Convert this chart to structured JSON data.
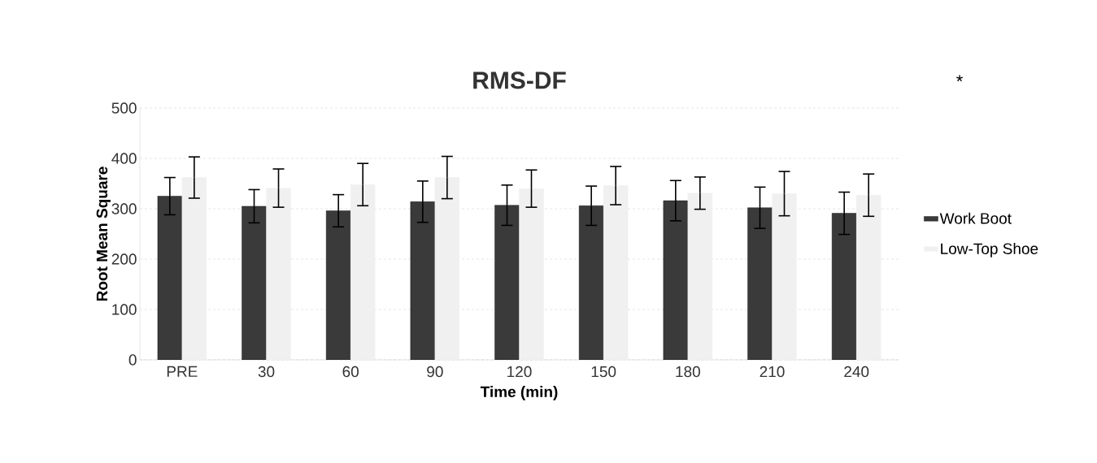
{
  "chart_data": {
    "type": "bar",
    "title": "RMS-DF",
    "xlabel": "Time (min)",
    "ylabel": "Root Mean Square",
    "categories": [
      "PRE",
      "30",
      "60",
      "90",
      "120",
      "150",
      "180",
      "210",
      "240"
    ],
    "series": [
      {
        "name": "Work Boot",
        "color": "#3a3a3a",
        "values": [
          325,
          305,
          296,
          314,
          307,
          306,
          316,
          302,
          291
        ],
        "errors": [
          37,
          33,
          32,
          41,
          40,
          39,
          40,
          41,
          42
        ]
      },
      {
        "name": "Low-Top Shoe",
        "color": "#f0f0f0",
        "values": [
          362,
          341,
          348,
          362,
          340,
          346,
          331,
          330,
          327
        ],
        "errors": [
          41,
          38,
          42,
          42,
          37,
          38,
          32,
          44,
          42
        ]
      }
    ],
    "ylim": [
      0,
      500
    ],
    "yticks": [
      0,
      100,
      200,
      300,
      400,
      500
    ],
    "grid": "y",
    "legend": "right",
    "annotations": [
      "*"
    ]
  }
}
